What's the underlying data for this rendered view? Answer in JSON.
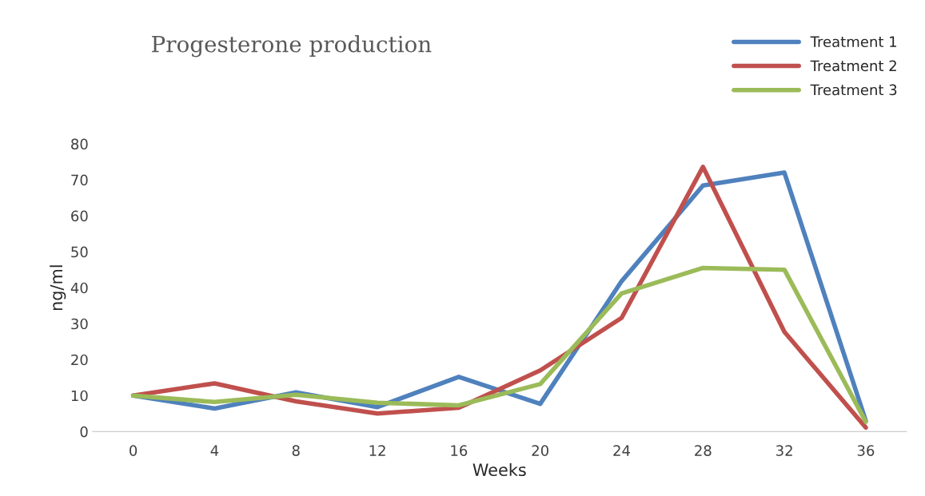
{
  "chart_data": {
    "type": "line",
    "title": "Progesterone production",
    "xlabel": "Weeks",
    "ylabel": "ng/ml",
    "categories": [
      "0",
      "4",
      "8",
      "12",
      "16",
      "20",
      "24",
      "28",
      "32",
      "36"
    ],
    "series": [
      {
        "name": "Treatment 1",
        "color": "#4f81bd",
        "values": [
          10,
          6.4,
          10.9,
          6.8,
          15.2,
          7.7,
          41.8,
          68.4,
          72.0,
          3.0
        ]
      },
      {
        "name": "Treatment 2",
        "color": "#c0504d",
        "values": [
          10,
          13.4,
          8.4,
          5.0,
          6.6,
          17.0,
          31.6,
          73.6,
          27.7,
          1.1
        ]
      },
      {
        "name": "Treatment 3",
        "color": "#9bbb59",
        "values": [
          10,
          8.2,
          10.2,
          8.0,
          7.3,
          13.2,
          38.4,
          45.5,
          45.0,
          2.7
        ]
      }
    ],
    "ylim": [
      0,
      80
    ],
    "yticks": [
      0,
      10,
      20,
      30,
      40,
      50,
      60,
      70,
      80
    ],
    "grid": false,
    "legend": "top right",
    "marker": "none",
    "line_style": "solid"
  }
}
